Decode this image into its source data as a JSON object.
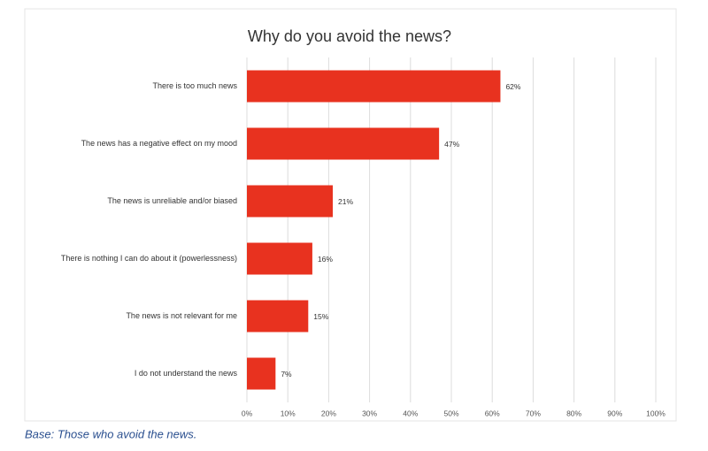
{
  "chart_data": {
    "type": "barh",
    "title": "Why do you avoid the news?",
    "categories": [
      "There is too much news",
      "The news has a negative effect on my mood",
      "The news is unreliable and/or biased",
      "There is nothing I can do about it (powerlessness)",
      "The news is not relevant for me",
      "I do not understand the news"
    ],
    "values": [
      62,
      47,
      21,
      16,
      15,
      7
    ],
    "value_labels": [
      "62%",
      "47%",
      "21%",
      "16%",
      "15%",
      "7%"
    ],
    "color": "#e8321f",
    "xlim": [
      0,
      100
    ],
    "xticks": [
      {
        "value": 0,
        "label": "0%"
      },
      {
        "value": 10,
        "label": "10%"
      },
      {
        "value": 20,
        "label": "20%"
      },
      {
        "value": 30,
        "label": "30%"
      },
      {
        "value": 40,
        "label": "40%"
      },
      {
        "value": 50,
        "label": "50%"
      },
      {
        "value": 60,
        "label": "60%"
      },
      {
        "value": 70,
        "label": "70%"
      },
      {
        "value": 80,
        "label": "80%"
      },
      {
        "value": 90,
        "label": "90%"
      },
      {
        "value": 100,
        "label": "100%"
      }
    ],
    "grid": true,
    "caption": "Base: Those who avoid the news."
  }
}
